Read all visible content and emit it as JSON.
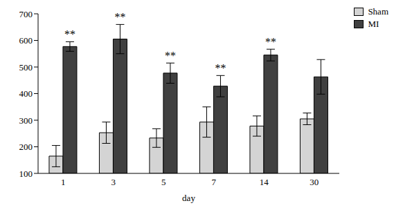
{
  "chart_data": {
    "type": "bar",
    "categories": [
      "1",
      "3",
      "5",
      "7",
      "14",
      "30"
    ],
    "xlabel": "day",
    "series": [
      {
        "name": "Sham",
        "color": "#d4d4d4",
        "values": [
          165,
          253,
          233,
          293,
          278,
          305
        ],
        "errors": [
          40,
          40,
          35,
          57,
          38,
          22
        ]
      },
      {
        "name": "MI",
        "color": "#404040",
        "values": [
          577,
          605,
          477,
          428,
          545,
          463
        ],
        "errors": [
          18,
          55,
          38,
          40,
          22,
          65
        ],
        "annotations": [
          "**",
          "**",
          "**",
          "**",
          "**",
          null
        ]
      }
    ],
    "ylim": [
      100,
      700
    ],
    "yticks": [
      100,
      200,
      300,
      400,
      500,
      600,
      700
    ],
    "grid": false,
    "legend": "upper right"
  }
}
